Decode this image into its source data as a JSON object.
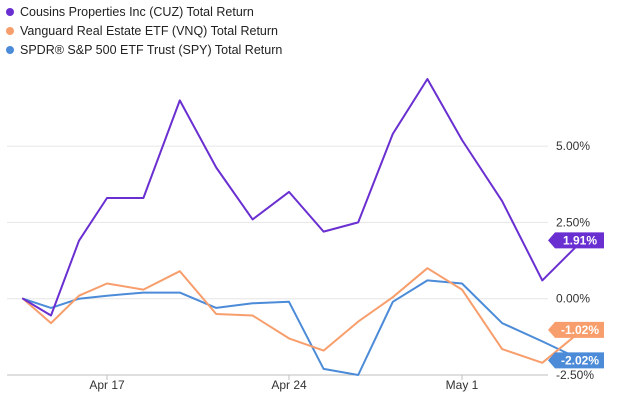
{
  "chart_data": {
    "type": "line",
    "title": "",
    "xlabel": "",
    "ylabel": "",
    "x_tick_labels": [
      "Apr 17",
      "Apr 24",
      "May 1"
    ],
    "y_tick_labels": [
      "5.00%",
      "2.50%",
      "0.00%",
      "-2.50%"
    ],
    "y_ticks": [
      5.0,
      2.5,
      0.0,
      -2.5
    ],
    "ylim": [
      -2.5,
      7.2
    ],
    "grid": "horizontal",
    "legend_position": "top-left",
    "x": [
      "2023-04-12",
      "2023-04-13",
      "2023-04-14",
      "2023-04-17",
      "2023-04-18",
      "2023-04-19",
      "2023-04-20",
      "2023-04-21",
      "2023-04-24",
      "2023-04-25",
      "2023-04-26",
      "2023-04-27",
      "2023-04-28",
      "2023-05-01",
      "2023-05-02",
      "2023-05-03",
      "2023-05-04"
    ],
    "series": [
      {
        "name": "Cousins Properties Inc (CUZ) Total Return",
        "color": "#6a2fd1",
        "end_label": "1.91%",
        "values": [
          0.0,
          -0.55,
          1.9,
          3.3,
          3.3,
          6.5,
          4.3,
          2.6,
          3.5,
          2.2,
          2.5,
          5.4,
          7.2,
          5.2,
          3.2,
          0.6,
          1.91
        ]
      },
      {
        "name": "Vanguard Real Estate ETF (VNQ) Total Return",
        "color": "#f79e6c",
        "end_label": "-1.02%",
        "values": [
          0.0,
          -0.8,
          0.1,
          0.5,
          0.3,
          0.9,
          -0.5,
          -0.55,
          -1.3,
          -1.7,
          -0.75,
          0.05,
          1.0,
          0.3,
          -1.65,
          -2.1,
          -1.02
        ]
      },
      {
        "name": "SPDR® S&P 500 ETF Trust (SPY) Total Return",
        "color": "#4b8bd8",
        "end_label": "-2.02%",
        "values": [
          0.0,
          -0.3,
          0.0,
          0.1,
          0.2,
          0.2,
          -0.3,
          -0.15,
          -0.1,
          -2.3,
          -2.5,
          -0.1,
          0.6,
          0.5,
          -0.8,
          -1.4,
          -2.02
        ]
      }
    ]
  }
}
